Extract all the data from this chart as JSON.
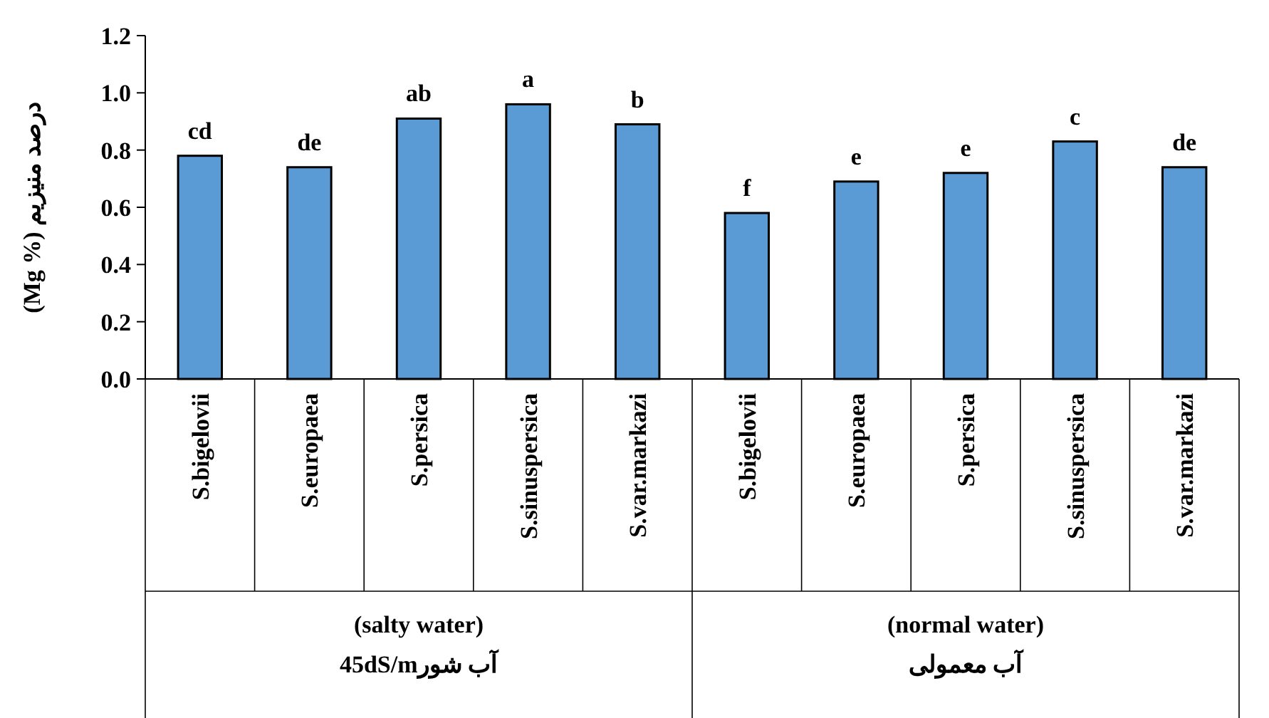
{
  "chart_data": {
    "type": "bar",
    "ylabel": "درصد منیزیم  (Mg %)",
    "categories": [
      "S.bigelovii",
      "S.europaea",
      "S.persica",
      "S.sinuspersica",
      "S.var.markazi",
      "S.bigelovii",
      "S.europaea",
      "S.persica",
      "S.sinuspersica",
      "S.var.markazi"
    ],
    "values": [
      0.78,
      0.74,
      0.91,
      0.96,
      0.89,
      0.58,
      0.69,
      0.72,
      0.83,
      0.74
    ],
    "value_labels": [
      "cd",
      "de",
      "ab",
      "a",
      "b",
      "f",
      "e",
      "e",
      "c",
      "de"
    ],
    "color": "#5b9bd5",
    "ylim": [
      0,
      1.2
    ],
    "yticks": [
      {
        "value": 0,
        "label": "0.0"
      },
      {
        "value": 0.2,
        "label": "0.2"
      },
      {
        "value": 0.4,
        "label": "0.4"
      },
      {
        "value": 0.6,
        "label": "0.6"
      },
      {
        "value": 0.8,
        "label": "0.8"
      },
      {
        "value": 1,
        "label": "1.0"
      },
      {
        "value": 1.2,
        "label": "1.2"
      }
    ],
    "grid": false,
    "annotations": [
      "(salty water)",
      "آب شور45dS/m",
      "(normal water)",
      "آب معمولی"
    ]
  }
}
